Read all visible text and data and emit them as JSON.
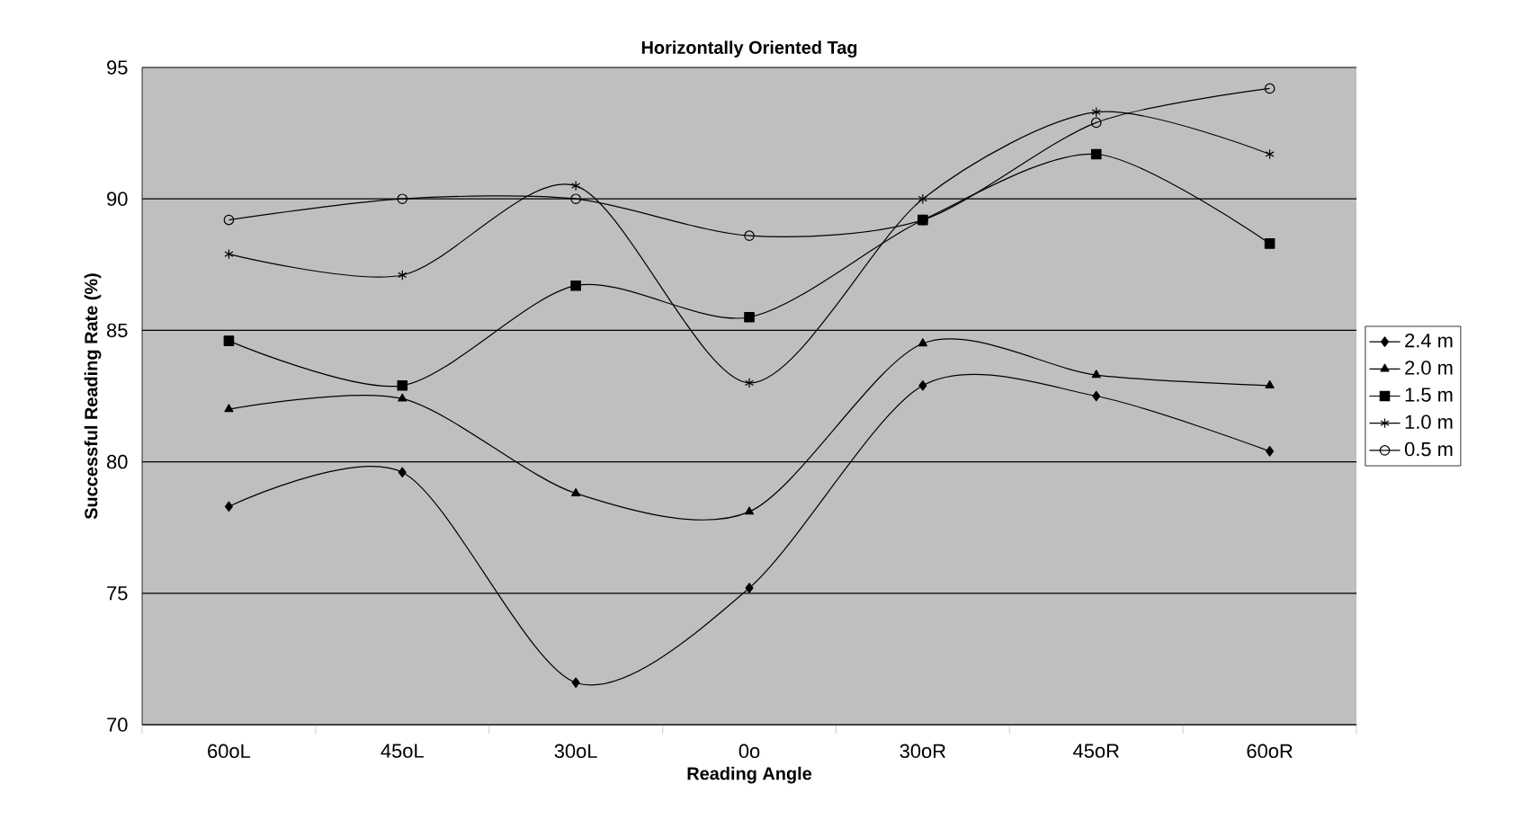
{
  "chart_data": {
    "type": "line",
    "title": "Horizontally Oriented Tag",
    "xlabel": "Reading Angle",
    "ylabel": "Successful Reading Rate (%)",
    "categories": [
      "60oL",
      "45oL",
      "30oL",
      "0o",
      "30oR",
      "45oR",
      "60oR"
    ],
    "series": [
      {
        "name": "2.4 m",
        "color": "#000000",
        "marker": "diamond",
        "values": [
          78.3,
          79.6,
          71.6,
          75.2,
          82.9,
          82.5,
          80.4
        ]
      },
      {
        "name": "2.0 m",
        "color": "#000000",
        "marker": "triangle",
        "values": [
          82.0,
          82.4,
          78.8,
          78.1,
          84.5,
          83.3,
          82.9
        ]
      },
      {
        "name": "1.5 m",
        "color": "#000000",
        "marker": "square",
        "values": [
          84.6,
          82.9,
          86.7,
          85.5,
          89.2,
          91.7,
          88.3
        ]
      },
      {
        "name": "1.0 m",
        "color": "#000000",
        "marker": "cross",
        "values": [
          87.9,
          87.1,
          90.5,
          83.0,
          90.0,
          93.3,
          91.7
        ]
      },
      {
        "name": "0.5 m",
        "color": "#000000",
        "marker": "circle",
        "values": [
          89.2,
          90.0,
          90.0,
          88.6,
          89.2,
          92.9,
          94.2
        ]
      }
    ],
    "ylim": [
      70,
      95
    ],
    "yticks": [
      70,
      75,
      80,
      85,
      90,
      95
    ],
    "grid": "y",
    "legend": "right",
    "line_style": "solid"
  }
}
